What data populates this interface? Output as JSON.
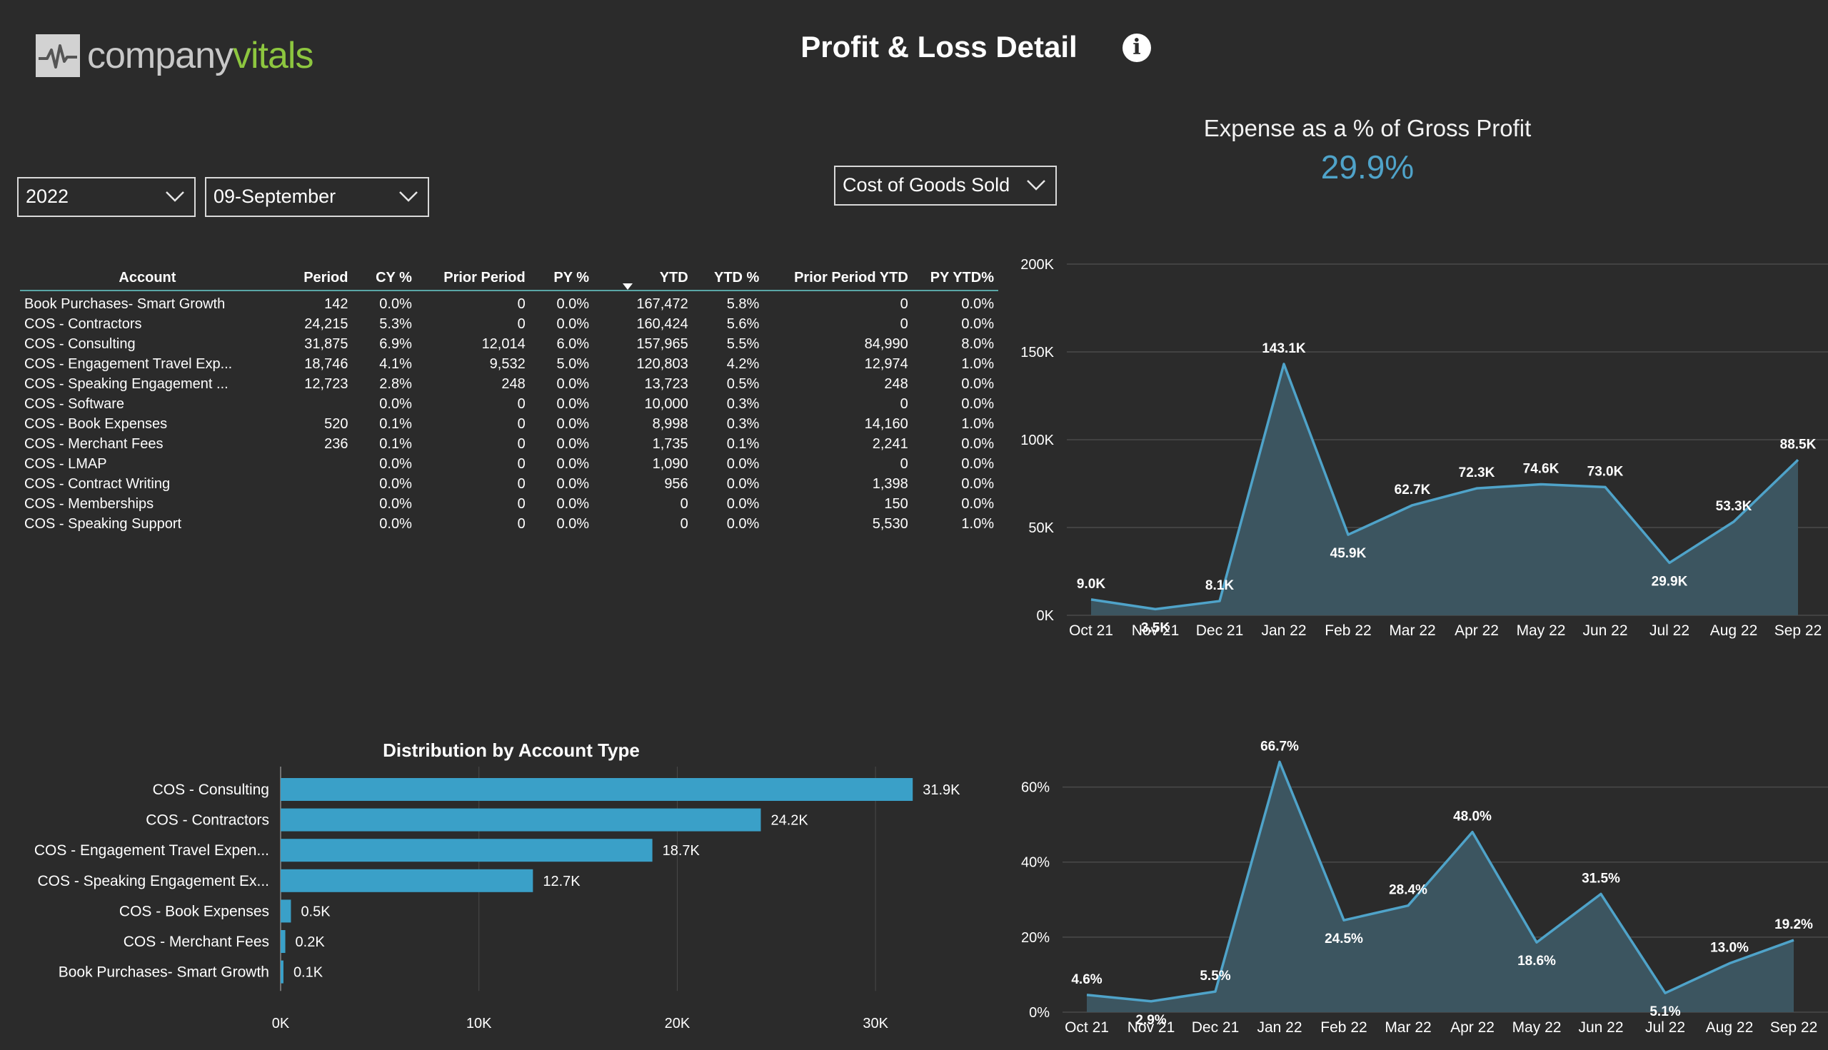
{
  "brand": {
    "name_part1": "company",
    "name_part2": "vitals",
    "accent": "#8dc63f"
  },
  "header": {
    "title": "Profit & Loss Detail",
    "info_icon": "info-icon"
  },
  "filters": {
    "year": {
      "value": "2022",
      "icon": "chevron-down-icon"
    },
    "month": {
      "value": "09-September",
      "icon": "chevron-down-icon"
    },
    "category": {
      "value": "Cost of Goods Sold",
      "icon": "chevron-down-icon"
    }
  },
  "kpi": {
    "title": "Expense as a % of Gross Profit",
    "value": "29.9%",
    "color": "#4fa3c9"
  },
  "table": {
    "sort_icon": "sort-desc-icon",
    "columns": [
      "Account",
      "Period",
      "CY %",
      "Prior Period",
      "PY %",
      "YTD",
      "YTD %",
      "Prior Period YTD",
      "PY YTD%"
    ],
    "rows": [
      [
        "Book Purchases- Smart Growth",
        "142",
        "0.0%",
        "0",
        "0.0%",
        "167,472",
        "5.8%",
        "0",
        "0.0%"
      ],
      [
        "COS - Contractors",
        "24,215",
        "5.3%",
        "0",
        "0.0%",
        "160,424",
        "5.6%",
        "0",
        "0.0%"
      ],
      [
        "COS - Consulting",
        "31,875",
        "6.9%",
        "12,014",
        "6.0%",
        "157,965",
        "5.5%",
        "84,990",
        "8.0%"
      ],
      [
        "COS - Engagement Travel Exp...",
        "18,746",
        "4.1%",
        "9,532",
        "5.0%",
        "120,803",
        "4.2%",
        "12,974",
        "1.0%"
      ],
      [
        "COS - Speaking Engagement ...",
        "12,723",
        "2.8%",
        "248",
        "0.0%",
        "13,723",
        "0.5%",
        "248",
        "0.0%"
      ],
      [
        "COS - Software",
        "",
        "0.0%",
        "0",
        "0.0%",
        "10,000",
        "0.3%",
        "0",
        "0.0%"
      ],
      [
        "COS - Book Expenses",
        "520",
        "0.1%",
        "0",
        "0.0%",
        "8,998",
        "0.3%",
        "14,160",
        "1.0%"
      ],
      [
        "COS - Merchant Fees",
        "236",
        "0.1%",
        "0",
        "0.0%",
        "1,735",
        "0.1%",
        "2,241",
        "0.0%"
      ],
      [
        "COS - LMAP",
        "",
        "0.0%",
        "0",
        "0.0%",
        "1,090",
        "0.0%",
        "0",
        "0.0%"
      ],
      [
        "COS - Contract Writing",
        "",
        "0.0%",
        "0",
        "0.0%",
        "956",
        "0.0%",
        "1,398",
        "0.0%"
      ],
      [
        "COS - Memberships",
        "",
        "0.0%",
        "0",
        "0.0%",
        "0",
        "0.0%",
        "150",
        "0.0%"
      ],
      [
        "COS - Speaking Support",
        "",
        "0.0%",
        "0",
        "0.0%",
        "0",
        "0.0%",
        "5,530",
        "1.0%"
      ]
    ]
  },
  "chart_data": [
    {
      "type": "bar",
      "orientation": "horizontal",
      "title": "Distribution by Account Type",
      "categories": [
        "COS - Consulting",
        "COS - Contractors",
        "COS - Engagement Travel Expen...",
        "COS - Speaking Engagement Ex...",
        "COS - Book Expenses",
        "COS - Merchant Fees",
        "Book Purchases- Smart Growth"
      ],
      "values": [
        31875,
        24215,
        18746,
        12723,
        520,
        236,
        142
      ],
      "data_labels": [
        "31.9K",
        "24.2K",
        "18.7K",
        "12.7K",
        "0.5K",
        "0.2K",
        "0.1K"
      ],
      "xlim": [
        0,
        35000
      ],
      "x_ticks": [
        0,
        10000,
        20000,
        30000
      ],
      "x_tick_labels": [
        "0K",
        "10K",
        "20K",
        "30K"
      ],
      "grid": true,
      "color": "#3aa0c8"
    },
    {
      "type": "area",
      "categories": [
        "Oct 21",
        "Nov 21",
        "Dec 21",
        "Jan 22",
        "Feb 22",
        "Mar 22",
        "Apr 22",
        "May 22",
        "Jun 22",
        "Jul 22",
        "Aug 22",
        "Sep 22"
      ],
      "values": [
        9000,
        3500,
        8100,
        143100,
        45900,
        62700,
        72300,
        74600,
        73000,
        29900,
        53300,
        88500
      ],
      "data_labels": [
        "9.0K",
        "3.5K",
        "8.1K",
        "143.1K",
        "45.9K",
        "62.7K",
        "72.3K",
        "74.6K",
        "73.0K",
        "29.9K",
        "53.3K",
        "88.5K"
      ],
      "ylim": [
        0,
        200000
      ],
      "y_ticks": [
        0,
        50000,
        100000,
        150000,
        200000
      ],
      "y_tick_labels": [
        "0K",
        "50K",
        "100K",
        "150K",
        "200K"
      ],
      "grid": true,
      "line_color": "#4fa3c9",
      "fill_color": "#3c5560"
    },
    {
      "type": "area",
      "categories": [
        "Oct 21",
        "Nov 21",
        "Dec 21",
        "Jan 22",
        "Feb 22",
        "Mar 22",
        "Apr 22",
        "May 22",
        "Jun 22",
        "Jul 22",
        "Aug 22",
        "Sep 22"
      ],
      "values": [
        4.6,
        2.9,
        5.5,
        66.7,
        24.5,
        28.4,
        48.0,
        18.6,
        31.5,
        5.1,
        13.0,
        19.2
      ],
      "data_labels": [
        "4.6%",
        "2.9%",
        "5.5%",
        "66.7%",
        "24.5%",
        "28.4%",
        "48.0%",
        "18.6%",
        "31.5%",
        "5.1%",
        "13.0%",
        "19.2%"
      ],
      "ylim": [
        0,
        70
      ],
      "y_ticks": [
        0,
        20,
        40,
        60
      ],
      "y_tick_labels": [
        "0%",
        "20%",
        "40%",
        "60%"
      ],
      "grid": true,
      "line_color": "#4fa3c9",
      "fill_color": "#3c5560"
    }
  ]
}
